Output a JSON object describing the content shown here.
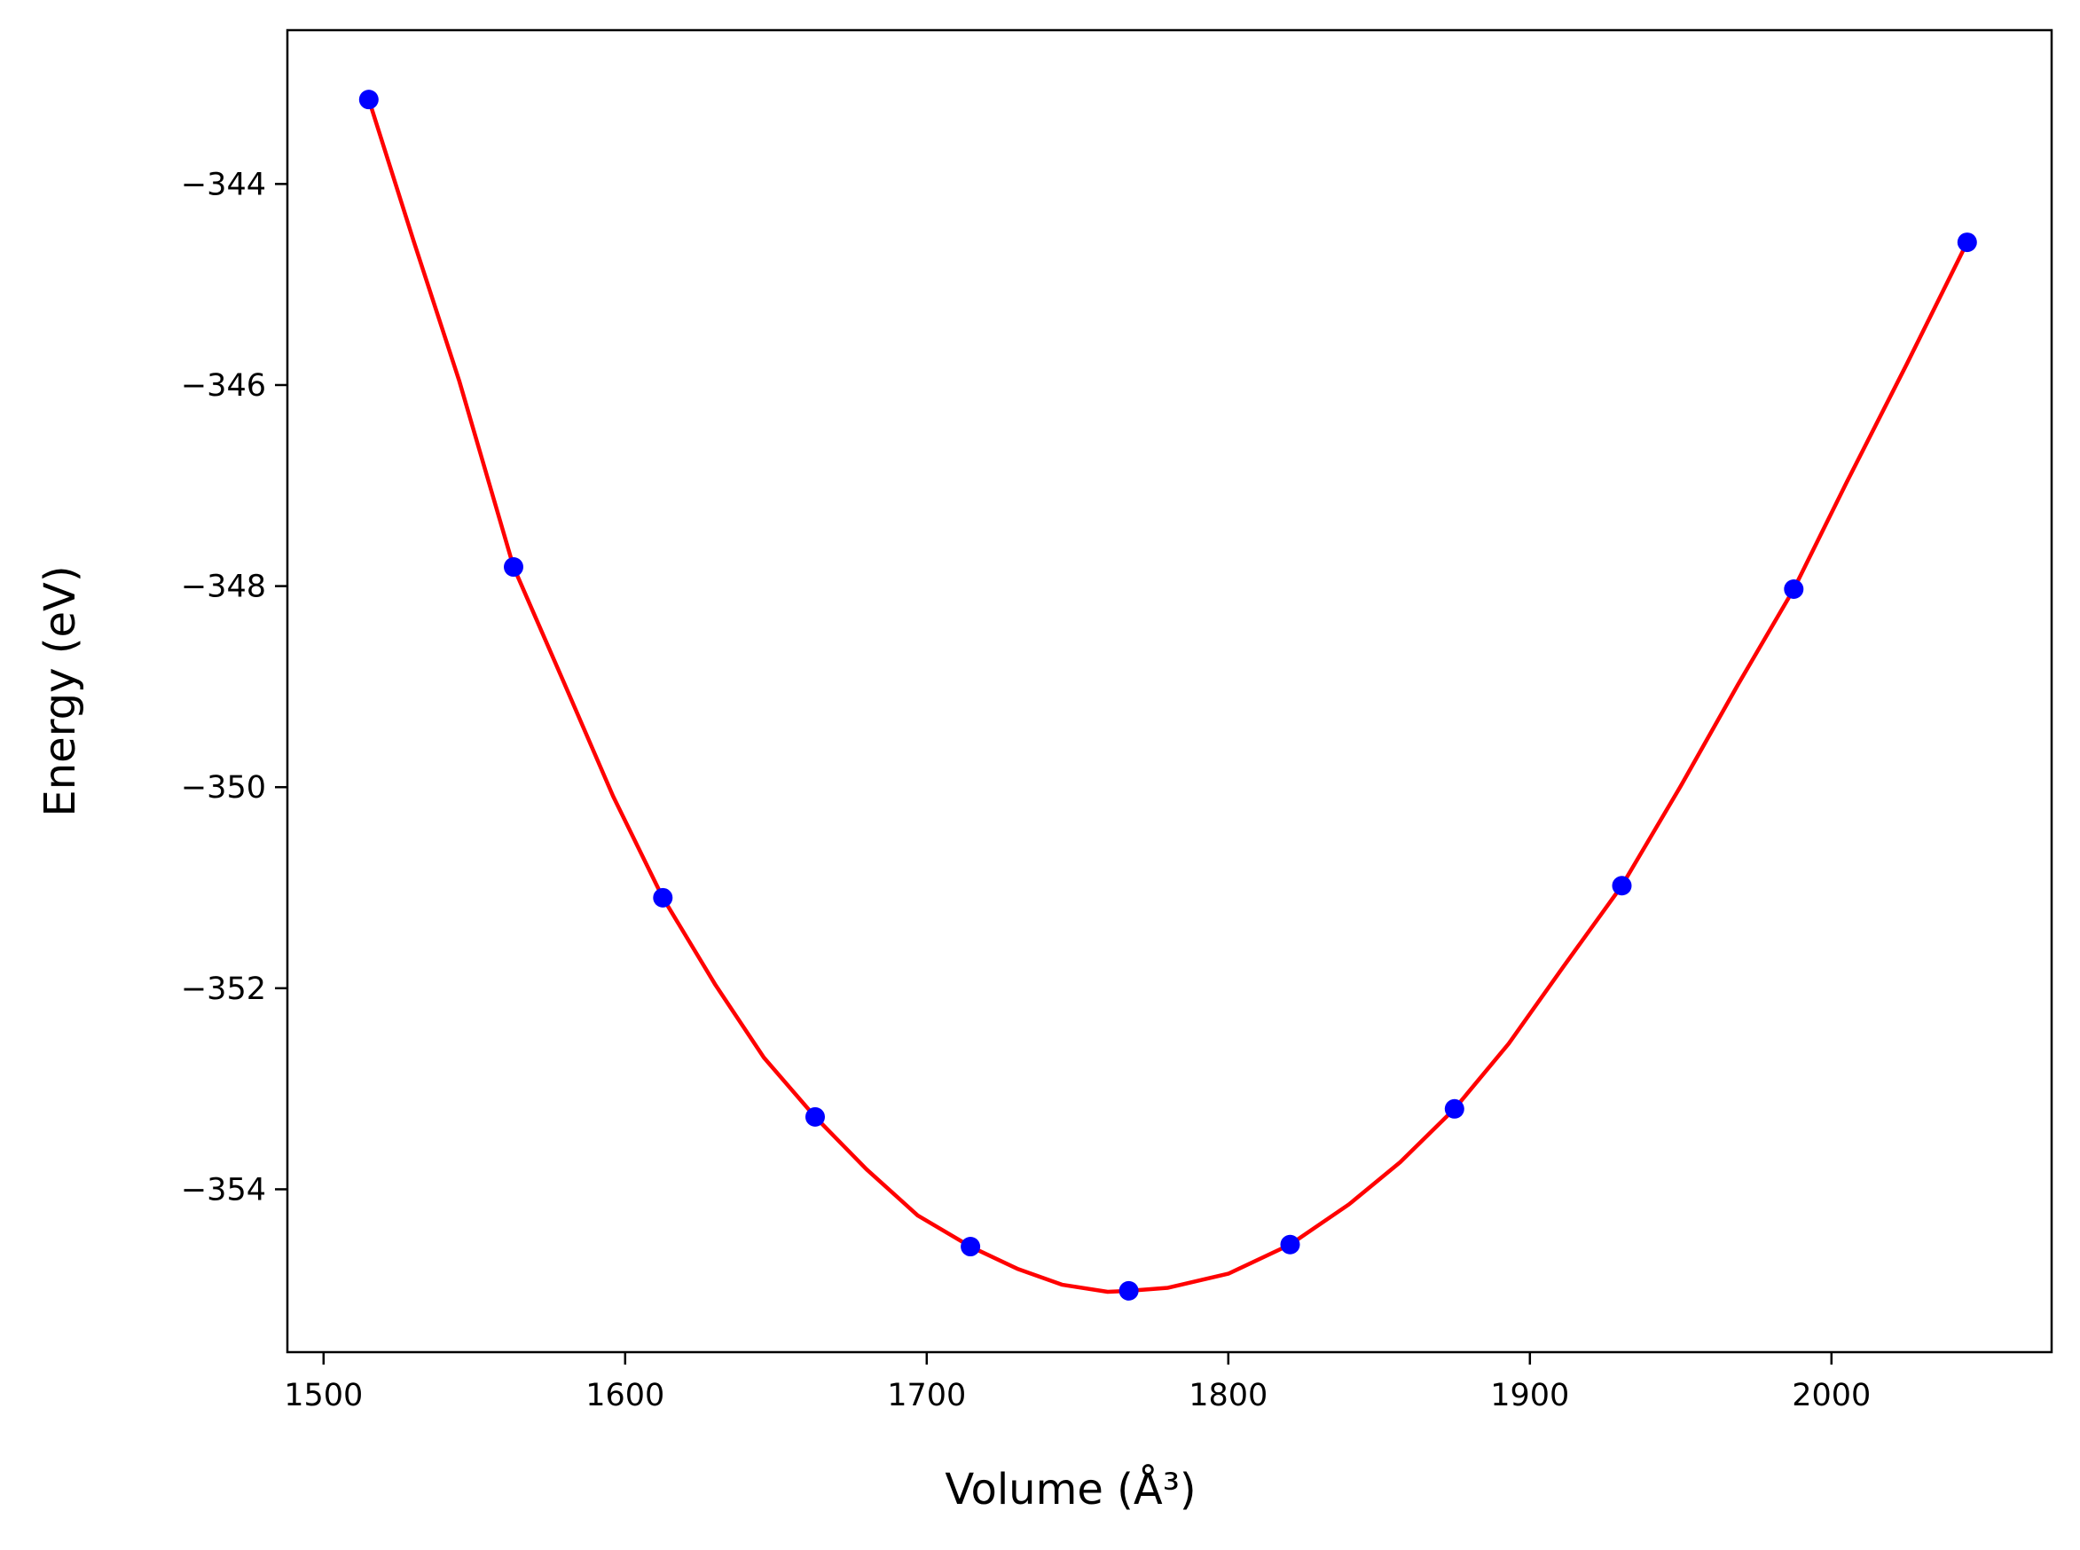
{
  "chart_data": {
    "type": "scatter",
    "title": "",
    "xlabel": "Volume (Å³)",
    "ylabel": "Energy (eV)",
    "xlim": [
      1488,
      2073
    ],
    "ylim": [
      -355.62,
      -342.47
    ],
    "xticks": [
      1500,
      1600,
      1700,
      1800,
      1900,
      2000
    ],
    "xtick_labels": [
      "1500",
      "1600",
      "1700",
      "1800",
      "1900",
      "2000"
    ],
    "yticks": [
      -344,
      -346,
      -348,
      -350,
      -352,
      -354
    ],
    "ytick_labels": [
      "−344",
      "−346",
      "−348",
      "−350",
      "−352",
      "−354"
    ],
    "grid": false,
    "legend": null,
    "series": [
      {
        "kind": "points",
        "color": "#0000ff",
        "x": [
          1515.0,
          1563.0,
          1612.5,
          1663.0,
          1714.5,
          1767.0,
          1820.5,
          1875.0,
          1930.5,
          1987.5,
          2045.0
        ],
        "y": [
          -343.16,
          -347.81,
          -351.1,
          -353.28,
          -354.57,
          -355.01,
          -354.55,
          -353.2,
          -350.98,
          -348.03,
          -344.58
        ]
      },
      {
        "kind": "fit-curve",
        "color": "#ff0000",
        "x": [
          1515,
          1530,
          1545,
          1563,
          1580,
          1596,
          1612.5,
          1630,
          1646,
          1663,
          1680,
          1697,
          1714.5,
          1730,
          1745,
          1760,
          1767,
          1780,
          1800,
          1820.5,
          1840,
          1857,
          1875,
          1893,
          1911,
          1930.5,
          1950,
          1969,
          1987.5,
          2005,
          2025,
          2045
        ],
        "y": [
          -343.16,
          -344.58,
          -345.96,
          -347.81,
          -348.98,
          -350.09,
          -351.1,
          -351.97,
          -352.69,
          -353.28,
          -353.8,
          -354.26,
          -354.57,
          -354.79,
          -354.95,
          -355.02,
          -355.01,
          -354.98,
          -354.84,
          -354.55,
          -354.15,
          -353.73,
          -353.2,
          -352.55,
          -351.79,
          -350.98,
          -349.99,
          -348.98,
          -348.03,
          -346.97,
          -345.79,
          -344.58
        ]
      }
    ]
  }
}
